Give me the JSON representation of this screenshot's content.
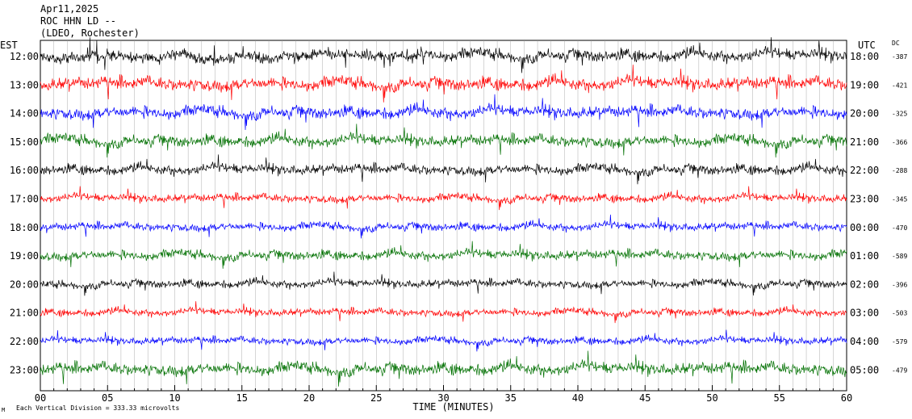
{
  "header": {
    "line1": "Apr11,2025",
    "line2": "ROC HHN LD --",
    "line3": "(LDEO, Rochester)"
  },
  "axis_labels": {
    "left": "EST",
    "right": "UTC",
    "dc": "DC",
    "xlabel": "TIME (MINUTES)"
  },
  "footer": {
    "glyph": "M",
    "note": "Each Vertical Division =  333.33 microvolts"
  },
  "colors": {
    "black": "#000000",
    "red": "#ff0000",
    "blue": "#0000ff",
    "green": "#007000"
  },
  "chart_data": {
    "type": "line",
    "description_type": "helicorder seismogram",
    "x_range": [
      0,
      60
    ],
    "x_ticks": [
      "00",
      "05",
      "10",
      "15",
      "20",
      "25",
      "30",
      "35",
      "40",
      "45",
      "50",
      "55",
      "60"
    ],
    "rows": [
      {
        "est": "12:00",
        "utc": "18:00",
        "dc": "-387",
        "color": "black",
        "amplitude": 0.9
      },
      {
        "est": "13:00",
        "utc": "19:00",
        "dc": "-421",
        "color": "red",
        "amplitude": 0.95
      },
      {
        "est": "14:00",
        "utc": "20:00",
        "dc": "-325",
        "color": "blue",
        "amplitude": 0.9
      },
      {
        "est": "15:00",
        "utc": "21:00",
        "dc": "-366",
        "color": "green",
        "amplitude": 0.85
      },
      {
        "est": "16:00",
        "utc": "22:00",
        "dc": "-288",
        "color": "black",
        "amplitude": 0.75
      },
      {
        "est": "17:00",
        "utc": "23:00",
        "dc": "-345",
        "color": "red",
        "amplitude": 0.6
      },
      {
        "est": "18:00",
        "utc": "00:00",
        "dc": "-470",
        "color": "blue",
        "amplitude": 0.6
      },
      {
        "est": "19:00",
        "utc": "01:00",
        "dc": "-589",
        "color": "green",
        "amplitude": 0.7
      },
      {
        "est": "20:00",
        "utc": "02:00",
        "dc": "-396",
        "color": "black",
        "amplitude": 0.6
      },
      {
        "est": "21:00",
        "utc": "03:00",
        "dc": "-503",
        "color": "red",
        "amplitude": 0.55
      },
      {
        "est": "22:00",
        "utc": "04:00",
        "dc": "-579",
        "color": "blue",
        "amplitude": 0.55
      },
      {
        "est": "23:00",
        "utc": "05:00",
        "dc": "-479",
        "color": "green",
        "amplitude": 0.9
      }
    ]
  }
}
